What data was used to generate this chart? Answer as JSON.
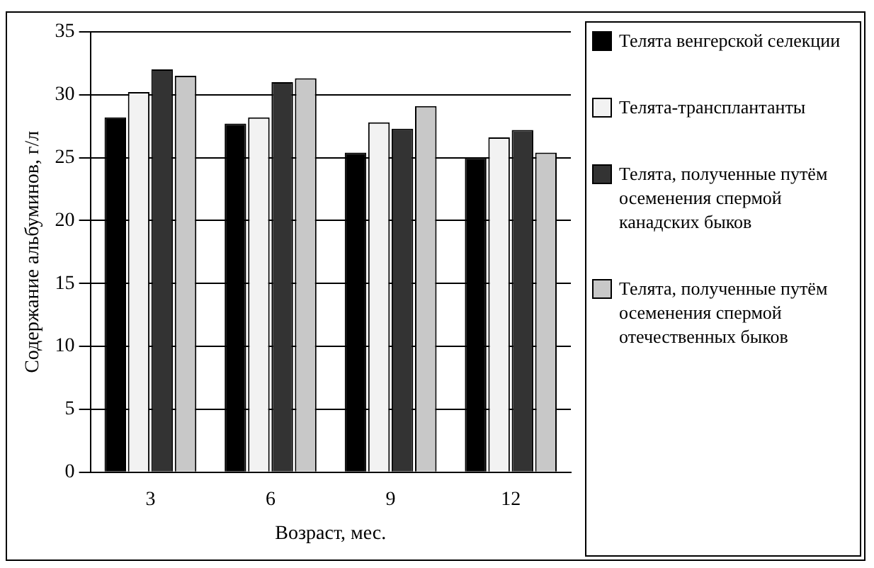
{
  "chart_data": {
    "type": "bar",
    "xlabel": "Возраст, мес.",
    "ylabel": "Содержание альбуминов, г/л",
    "categories": [
      "3",
      "6",
      "9",
      "12"
    ],
    "series": [
      {
        "name": "Телята венгерской селекции",
        "color": "#000000",
        "values": [
          28.2,
          27.7,
          25.4,
          25.0
        ]
      },
      {
        "name": "Телята-трансплантанты",
        "color": "#f2f2f2",
        "values": [
          30.2,
          28.2,
          27.8,
          26.6
        ]
      },
      {
        "name": "Телята, полученные путём осеменения спермой канадских быков",
        "color": "#333333",
        "values": [
          32.0,
          31.0,
          27.3,
          27.2
        ]
      },
      {
        "name": "Телята, полученные путём осеменения спермой отечественных быков",
        "color": "#c8c8c8",
        "values": [
          31.5,
          31.3,
          29.1,
          25.4
        ]
      }
    ],
    "ylim": [
      0,
      35
    ],
    "yticks": [
      0,
      5,
      10,
      15,
      20,
      25,
      30,
      35
    ],
    "grid": "y",
    "legend": "right"
  }
}
